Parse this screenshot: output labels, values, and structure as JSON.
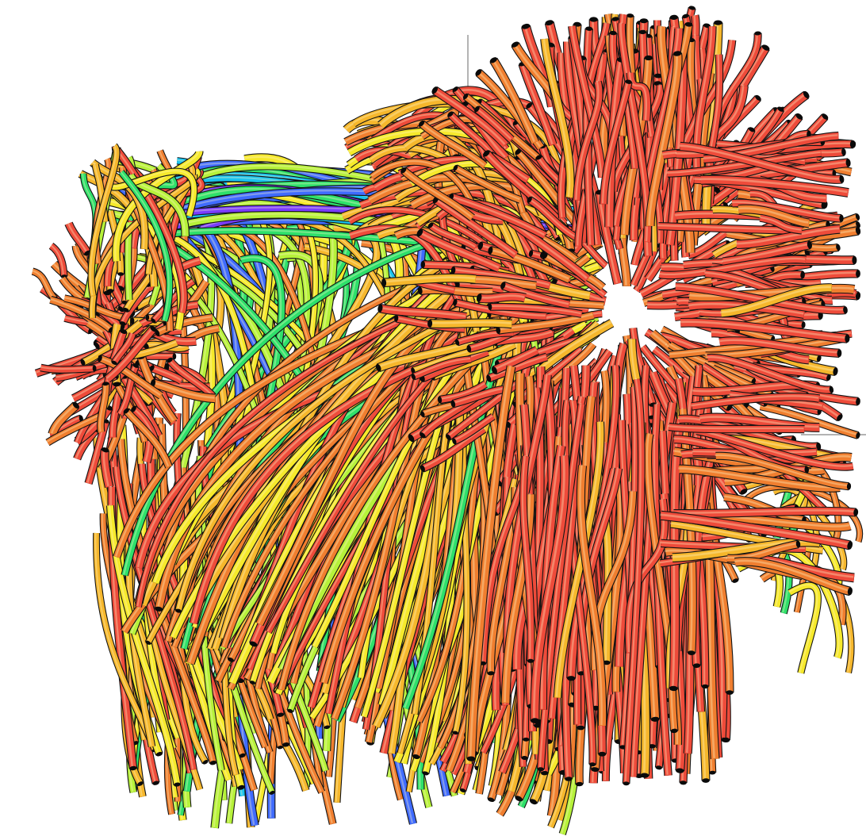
{
  "scene": {
    "background": "#ffffff",
    "axis_color": "#9a9a9a",
    "palette": [
      "#7a3cff",
      "#3f6bff",
      "#19c3ee",
      "#2ee06a",
      "#b6f23a",
      "#f6e92b",
      "#f6b72c",
      "#f07e2f",
      "#ee4b3a"
    ],
    "cap_color": "#0a0a0a",
    "outline_color": "#141414",
    "highlight_color": "#fff5c8",
    "sources": [
      "left-fan-source",
      "right-fan-source"
    ]
  }
}
